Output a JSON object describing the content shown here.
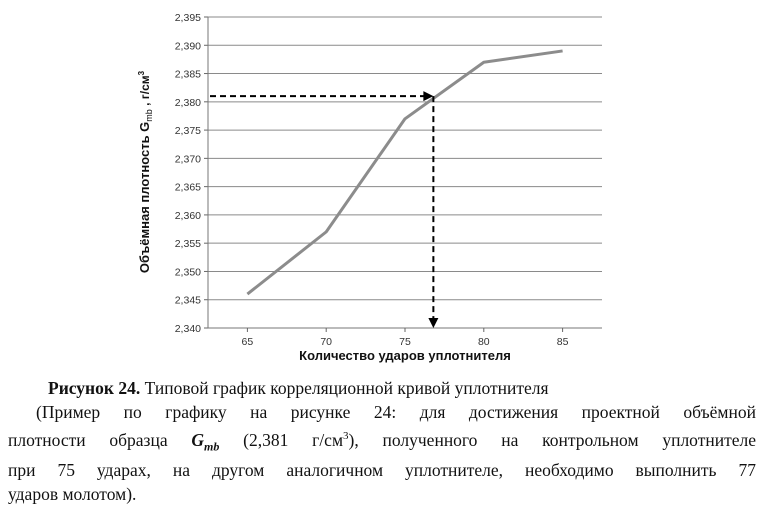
{
  "chart_data": {
    "type": "line",
    "x": [
      65,
      70,
      75,
      80,
      85
    ],
    "series": [
      {
        "values": [
          2.346,
          2.357,
          2.377,
          2.387,
          2.389
        ]
      }
    ],
    "xlabel": "Количество ударов уплотнителя",
    "ylabel_main": "Объёмная плотность G",
    "ylabel_sub": "mb",
    "ylabel_unit": " , г/см",
    "ylabel_sup": "3",
    "xlim": [
      62.5,
      87.5
    ],
    "ylim": [
      2.34,
      2.395
    ],
    "x_ticks": [
      "65",
      "70",
      "75",
      "80",
      "85"
    ],
    "y_ticks": [
      "2,340",
      "2,345",
      "2,350",
      "2,355",
      "2,360",
      "2,365",
      "2,370",
      "2,375",
      "2,380",
      "2,385",
      "2,390",
      "2,395"
    ],
    "grid": "horizontal",
    "annotation": {
      "y_target": 2.381,
      "x_result": 76.8
    },
    "colors": {
      "line": "#8c8c8c",
      "grid": "#8a8a8a",
      "arrow": "#000000"
    }
  },
  "caption": {
    "title_bold": "Рисунок 24.",
    "title_text": " Типовой график корреляционной кривой уплотнителя",
    "p_line1": "(Пример по графику на рисунке 24: для достижения проектной объёмной",
    "p_line2_a": "плотности образца ",
    "p_line2_g": "G",
    "p_line2_sub": "mb",
    "p_line2_b": " (2,381 г/см",
    "p_line2_sup": "3",
    "p_line2_c": "), полученного на контрольном уплотнителе",
    "p_line3": "при 75 ударах, на другом аналогичном уплотнителе, необходимо выполнить 77",
    "p_line4": "ударов молотом)."
  }
}
